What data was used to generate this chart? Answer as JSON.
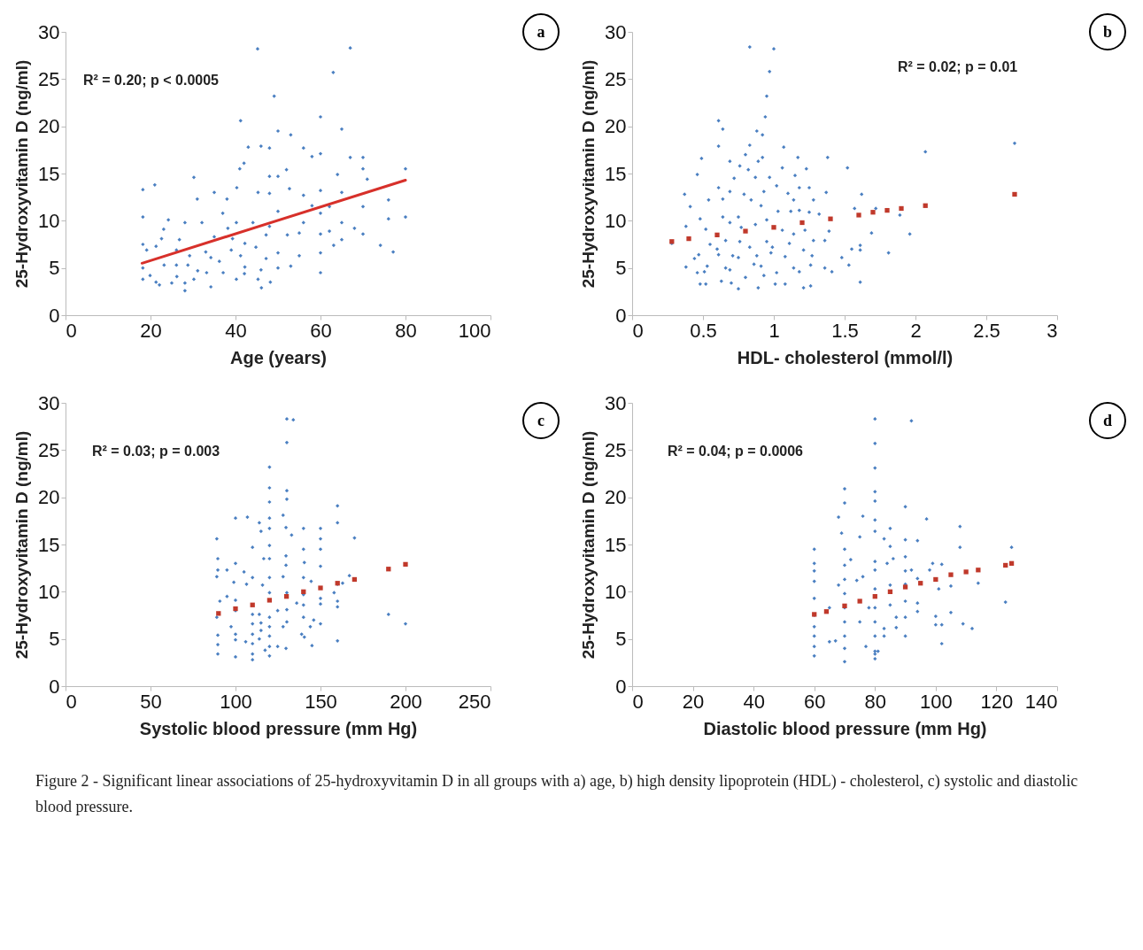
{
  "chart_data": [
    {
      "type": "scatter",
      "xlabel": "Age (years)",
      "ylabel": "25-Hydroxyvitamin D (ng/ml)",
      "marker": "diamond",
      "xlim": [
        0,
        100
      ],
      "xticks": [
        0,
        20,
        40,
        60,
        80,
        100
      ],
      "ylim": [
        0,
        30
      ],
      "yticks": [
        0,
        5,
        10,
        15,
        20,
        25,
        30
      ],
      "annotations": [
        "R² = 0.20; p < 0.0005",
        "a"
      ],
      "series": [
        {
          "type": "scatter",
          "color": "#4a7fc1",
          "x": [
            45.2,
            67,
            63,
            49.1,
            41.2,
            60,
            65,
            50,
            53,
            43,
            46,
            48,
            42,
            41,
            56,
            58,
            60,
            67,
            70,
            70,
            80,
            64,
            52,
            48,
            50,
            30.2,
            21,
            18.2,
            71,
            35,
            31,
            40.3,
            45.3,
            48,
            52.7,
            56,
            60,
            65,
            76,
            70,
            38,
            37,
            50,
            58,
            62.1,
            18.2,
            76,
            80,
            24.2,
            28.1,
            32.1,
            40.2,
            44.1,
            60,
            65,
            23.1,
            38.2,
            48,
            56,
            68,
            62.1,
            65,
            70,
            74.1,
            77.1,
            22.6,
            26.8,
            35,
            39.3,
            42.2,
            47.2,
            52.2,
            55,
            60,
            18.2,
            19.1,
            21.3,
            26.1,
            33,
            39,
            44.8,
            50,
            55,
            60,
            63.1,
            29.2,
            41.2,
            18.2,
            23.2,
            26.1,
            28.8,
            34.2,
            36.2,
            42.2,
            47.2,
            53,
            50,
            60,
            31.1,
            33.2,
            37.1,
            42.1,
            46,
            18.2,
            19.9,
            26.2,
            30.2,
            40.2,
            45.3,
            21.3,
            22.1,
            25,
            28.1,
            34.2,
            28.1,
            46.1,
            48.2
          ],
          "values": [
            28.2,
            28.3,
            25.7,
            23.2,
            20.6,
            21,
            19.7,
            19.5,
            19.1,
            17.8,
            17.9,
            17.7,
            16.1,
            15.5,
            17.7,
            16.8,
            17.1,
            16.7,
            16.7,
            15.5,
            15.5,
            14.9,
            15.4,
            14.7,
            14.7,
            14.6,
            13.8,
            13.3,
            14.4,
            13,
            12.3,
            13.5,
            13,
            12.9,
            13.4,
            12.7,
            13.2,
            13,
            12.2,
            11.5,
            12.3,
            10.8,
            11,
            11.6,
            11.5,
            10.4,
            10.2,
            10.4,
            10.1,
            9.8,
            9.8,
            9.8,
            9.8,
            10.8,
            9.8,
            9.1,
            9.2,
            9.4,
            9.8,
            9.2,
            8.9,
            8,
            8.6,
            7.4,
            6.7,
            8.1,
            8,
            8.3,
            8.1,
            7.6,
            8.5,
            8.5,
            8.7,
            8.6,
            7.5,
            6.9,
            7.3,
            6.9,
            6.7,
            6.9,
            7.2,
            6.6,
            6.3,
            6.6,
            7.4,
            6.3,
            6.3,
            5,
            5.3,
            5.3,
            5.3,
            6.1,
            5.7,
            5.1,
            6,
            5.2,
            5,
            4.5,
            4.7,
            4.5,
            4.5,
            4.4,
            4.8,
            3.8,
            4.2,
            4.1,
            3.8,
            3.8,
            3.8,
            3.5,
            3.2,
            3.4,
            3.4,
            3,
            2.6,
            2.9,
            3.5
          ]
        },
        {
          "type": "line",
          "marker": "none",
          "color": "#d7302a",
          "x": [
            18,
            80
          ],
          "values": [
            5.5,
            14.3
          ]
        }
      ]
    },
    {
      "type": "scatter",
      "xlabel": "HDL- cholesterol (mmol/l)",
      "ylabel": "25-Hydroxyvitamin D (ng/ml)",
      "marker": "diamond",
      "xlim": [
        0,
        3
      ],
      "xticks": [
        {
          "value": 0,
          "label": "0"
        },
        {
          "value": 0.5,
          "label": "0.5"
        },
        {
          "value": 1,
          "label": "1"
        },
        {
          "value": 1.5,
          "label": "1.5"
        },
        {
          "value": 2,
          "label": "2"
        },
        {
          "value": 2.5,
          "label": "2.5"
        },
        {
          "value": 3,
          "label": "3"
        }
      ],
      "ylim": [
        0,
        30
      ],
      "yticks": [
        0,
        5,
        10,
        15,
        20,
        25,
        30
      ],
      "annotations": [
        "R² = 0.02; p = 0.01",
        "b"
      ],
      "series": [
        {
          "type": "scatter",
          "color": "#4a7fc1",
          "x": [
            0.83,
            1.0,
            0.97,
            0.95,
            0.94,
            0.61,
            0.64,
            0.88,
            0.92,
            0.61,
            0.83,
            1.07,
            2.7,
            2.07,
            0.49,
            0.8,
            0.92,
            1.17,
            1.38,
            0.69,
            0.76,
            0.89,
            0.46,
            0.82,
            1.06,
            1.23,
            1.52,
            0.87,
            0.72,
            0.97,
            1.15,
            0.37,
            0.61,
            0.69,
            0.79,
            0.93,
            1.02,
            1.18,
            1.25,
            1.37,
            1.62,
            0.41,
            0.54,
            0.64,
            0.84,
            0.91,
            1.1,
            1.14,
            1.28,
            1.72,
            1.57,
            0.48,
            0.64,
            0.75,
            1.03,
            1.12,
            1.18,
            1.25,
            1.32,
            1.89,
            0.38,
            0.52,
            0.69,
            0.77,
            0.87,
            0.95,
            1.06,
            1.14,
            1.22,
            1.39,
            1.69,
            1.96,
            0.55,
            0.6,
            0.66,
            0.76,
            0.83,
            0.95,
            0.99,
            1.11,
            1.28,
            1.36,
            1.55,
            1.61,
            1.61,
            0.28,
            0.47,
            0.44,
            0.61,
            0.71,
            0.75,
            0.88,
            0.98,
            1.08,
            1.21,
            1.27,
            1.81,
            1.48,
            0.38,
            0.53,
            0.66,
            0.69,
            0.86,
            0.91,
            1.14,
            1.26,
            1.36,
            1.53,
            0.46,
            0.51,
            0.8,
            1.02,
            1.18,
            1.41,
            0.93,
            0.48,
            0.52,
            0.63,
            0.7,
            0.75,
            0.89,
            1.01,
            1.08,
            1.21,
            1.26,
            1.61
          ],
          "values": [
            28.4,
            28.2,
            25.8,
            23.2,
            21,
            20.6,
            19.7,
            19.5,
            19.1,
            17.9,
            18,
            17.8,
            18.2,
            17.3,
            16.6,
            17,
            16.7,
            16.7,
            16.7,
            16.3,
            15.8,
            16.3,
            14.9,
            15.4,
            15.6,
            15.5,
            15.6,
            14.6,
            14.5,
            14.6,
            14.8,
            12.8,
            13.5,
            13.1,
            12.8,
            13.1,
            13.7,
            13.5,
            13.5,
            13,
            12.8,
            11.5,
            12.2,
            12.3,
            12.2,
            11.6,
            12.9,
            12.2,
            12.2,
            11.3,
            11.3,
            10.2,
            10.4,
            10.4,
            11,
            11,
            11.1,
            10.9,
            10.7,
            10.6,
            9.4,
            9.1,
            9.8,
            9.3,
            9.6,
            10.1,
            9,
            8.6,
            9,
            8.9,
            8.7,
            8.6,
            7.5,
            7,
            7.9,
            7.8,
            7.2,
            7.8,
            7.2,
            7.6,
            7.9,
            7.9,
            7,
            7.4,
            6.9,
            7.6,
            6.4,
            6,
            6.4,
            6.3,
            6.1,
            6.3,
            6.6,
            6.2,
            6.9,
            6.3,
            6.6,
            6.1,
            5.1,
            5.2,
            5,
            4.8,
            5.4,
            5.2,
            5,
            5.3,
            5,
            5.3,
            4.5,
            4.6,
            4,
            4.5,
            4.6,
            4.6,
            4.2,
            3.3,
            3.3,
            3.6,
            3.4,
            2.8,
            2.9,
            3.3,
            3.3,
            2.9,
            3.1,
            3.5
          ]
        },
        {
          "type": "scatter",
          "marker": "square",
          "color": "#c0392b",
          "x": [
            0.28,
            0.4,
            0.6,
            0.8,
            1.0,
            1.2,
            1.4,
            1.6,
            1.7,
            1.8,
            1.9,
            2.07,
            2.7
          ],
          "values": [
            7.8,
            8.1,
            8.5,
            8.9,
            9.3,
            9.8,
            10.2,
            10.6,
            10.9,
            11.1,
            11.3,
            11.6,
            12.8
          ]
        }
      ]
    },
    {
      "type": "scatter",
      "xlabel": "Systolic blood pressure (mm Hg)",
      "ylabel": "25-Hydroxyvitamin D (ng/ml)",
      "marker": "diamond",
      "xlim": [
        0,
        250
      ],
      "xticks": [
        0,
        50,
        100,
        150,
        200,
        250
      ],
      "ylim": [
        0,
        30
      ],
      "yticks": [
        0,
        5,
        10,
        15,
        20,
        25,
        30
      ],
      "annotations": [
        "R² = 0.03; p = 0.003",
        "c"
      ],
      "series": [
        {
          "type": "scatter",
          "color": "#4a7fc1",
          "x": [
            130.2,
            134,
            130.2,
            120,
            120,
            130.2,
            130.2,
            120,
            160,
            160,
            100,
            107,
            120,
            128,
            114,
            115,
            120,
            129.7,
            133,
            140,
            150,
            150,
            170,
            89,
            89.6,
            89.6,
            140,
            150,
            110,
            120,
            120,
            116.6,
            129.7,
            129.7,
            140.5,
            150,
            100,
            95,
            105,
            160,
            163,
            89,
            99,
            106.5,
            110,
            115.9,
            120,
            128,
            140,
            144.5,
            158,
            150,
            150,
            160,
            160,
            90.8,
            95,
            100,
            89,
            100,
            110,
            110,
            110,
            110,
            110,
            110,
            120,
            120,
            120,
            120,
            120,
            120,
            130.2,
            130.2,
            130.2,
            128,
            140,
            140,
            140,
            136,
            124.8,
            114,
            115,
            115,
            114,
            97.4,
            100,
            100,
            100,
            106,
            89.6,
            89.6,
            89.6,
            117.4,
            124.8,
            129.7,
            138.9,
            140.5,
            145,
            144,
            146,
            150,
            160,
            190,
            200,
            167
          ],
          "values": [
            28.3,
            28.2,
            25.8,
            23.2,
            21,
            20.7,
            19.8,
            19.5,
            19.1,
            17.3,
            17.8,
            17.9,
            17.8,
            18.1,
            17.3,
            16.4,
            16.7,
            16.8,
            16,
            16.7,
            16.7,
            15.6,
            15.7,
            15.6,
            13.5,
            12.3,
            14.5,
            14.5,
            14.7,
            14.9,
            13.5,
            13.5,
            13.8,
            12.8,
            13.1,
            12.7,
            13,
            12.3,
            12.1,
            10.8,
            10.9,
            11.6,
            11,
            10.8,
            11.5,
            10.7,
            11.5,
            11.6,
            11.5,
            11.1,
            9.9,
            9.3,
            8.7,
            9,
            8.4,
            9,
            9.5,
            9.1,
            7.3,
            8,
            7.6,
            6.6,
            5.5,
            4.5,
            3.4,
            2.8,
            9.9,
            7.3,
            6.3,
            5.3,
            4.2,
            3.2,
            9.9,
            8.1,
            6.8,
            6.3,
            9.7,
            8.6,
            7.3,
            8.8,
            8,
            7.6,
            6.7,
            5.9,
            5,
            6.3,
            5.5,
            4.9,
            3.1,
            4.7,
            5.4,
            4.4,
            3.4,
            3.8,
            4.2,
            4,
            5.5,
            5.2,
            4.3,
            6.3,
            7,
            6.6,
            4.8,
            7.6,
            6.6,
            11.7
          ]
        },
        {
          "type": "scatter",
          "marker": "square",
          "color": "#c0392b",
          "x": [
            90,
            100,
            110,
            120,
            130,
            140,
            150,
            160,
            170,
            190,
            200
          ],
          "values": [
            7.7,
            8.2,
            8.6,
            9.1,
            9.5,
            10,
            10.4,
            10.9,
            11.3,
            12.4,
            12.9
          ]
        }
      ]
    },
    {
      "type": "scatter",
      "xlabel": "Diastolic blood pressure (mm Hg)",
      "ylabel": "25-Hydroxyvitamin D (ng/ml)",
      "marker": "diamond",
      "xlim": [
        0,
        140
      ],
      "xticks": [
        0,
        20,
        40,
        60,
        80,
        100,
        120,
        140
      ],
      "ylim": [
        0,
        30
      ],
      "yticks": [
        0,
        5,
        10,
        15,
        20,
        25,
        30
      ],
      "annotations": [
        "R² = 0.04; p = 0.0006",
        "d",
        "Figure 2 - Significant linear associations of 25-hydroxyvitamin D in all groups with a) age, b) high density lipoprotein (HDL) - cholesterol, c) systolic and diastolic blood pressure."
      ],
      "series": [
        {
          "type": "scatter",
          "color": "#4a7fc1",
          "x": [
            80,
            92,
            80,
            80,
            70,
            80,
            70,
            80,
            90,
            68,
            76,
            80,
            97,
            108,
            69,
            75,
            80,
            85,
            83,
            90,
            94,
            60,
            70,
            85,
            108,
            125,
            72,
            80,
            84,
            86,
            90,
            99,
            102,
            60,
            60,
            60,
            60,
            60,
            60,
            60,
            60,
            60,
            70,
            70,
            70,
            70,
            70,
            70,
            70,
            70,
            68,
            74,
            76,
            80,
            80,
            80,
            80,
            80,
            80,
            80,
            85,
            85,
            90,
            90,
            90,
            90,
            90,
            92,
            94,
            94,
            94,
            98,
            101,
            105,
            114,
            123,
            105,
            100,
            100,
            102,
            109,
            112,
            102,
            87,
            87,
            83,
            83,
            75,
            78,
            77,
            65,
            67,
            80,
            81,
            65
          ],
          "values": [
            28.3,
            28.1,
            25.7,
            23.1,
            20.9,
            20.6,
            19.4,
            19.6,
            19,
            17.9,
            18,
            17.6,
            17.7,
            16.9,
            16.2,
            15.8,
            16.4,
            16.7,
            15.6,
            15.5,
            15.4,
            14.5,
            14.5,
            14.8,
            14.7,
            14.7,
            13.4,
            13.2,
            13,
            13.5,
            13.7,
            13,
            12.9,
            13,
            12.2,
            11.1,
            9.3,
            7.5,
            6.3,
            5.3,
            4.2,
            3.2,
            12.8,
            11.3,
            9.8,
            8.3,
            6.8,
            5.3,
            4,
            2.6,
            10.7,
            11.2,
            11.6,
            12.3,
            10.3,
            8.3,
            6.8,
            5.3,
            3.7,
            2.9,
            10.7,
            8.6,
            12.2,
            10.8,
            9,
            7.3,
            5.3,
            12.3,
            11.4,
            8.8,
            7.9,
            12.3,
            10.3,
            10.6,
            10.9,
            8.9,
            7.8,
            7.4,
            6.5,
            6.5,
            6.6,
            6.1,
            4.5,
            7.3,
            6.2,
            6.1,
            5.3,
            6.8,
            8.3,
            4.2,
            4.7,
            4.8,
            3.4,
            3.7,
            8.3
          ]
        },
        {
          "type": "scatter",
          "marker": "square",
          "color": "#c0392b",
          "x": [
            60,
            64,
            70,
            75,
            80,
            85,
            90,
            95,
            100,
            105,
            110,
            114,
            123,
            125
          ],
          "values": [
            7.6,
            7.9,
            8.5,
            9,
            9.5,
            10,
            10.5,
            10.9,
            11.3,
            11.8,
            12.1,
            12.3,
            12.8,
            13
          ]
        }
      ]
    }
  ]
}
